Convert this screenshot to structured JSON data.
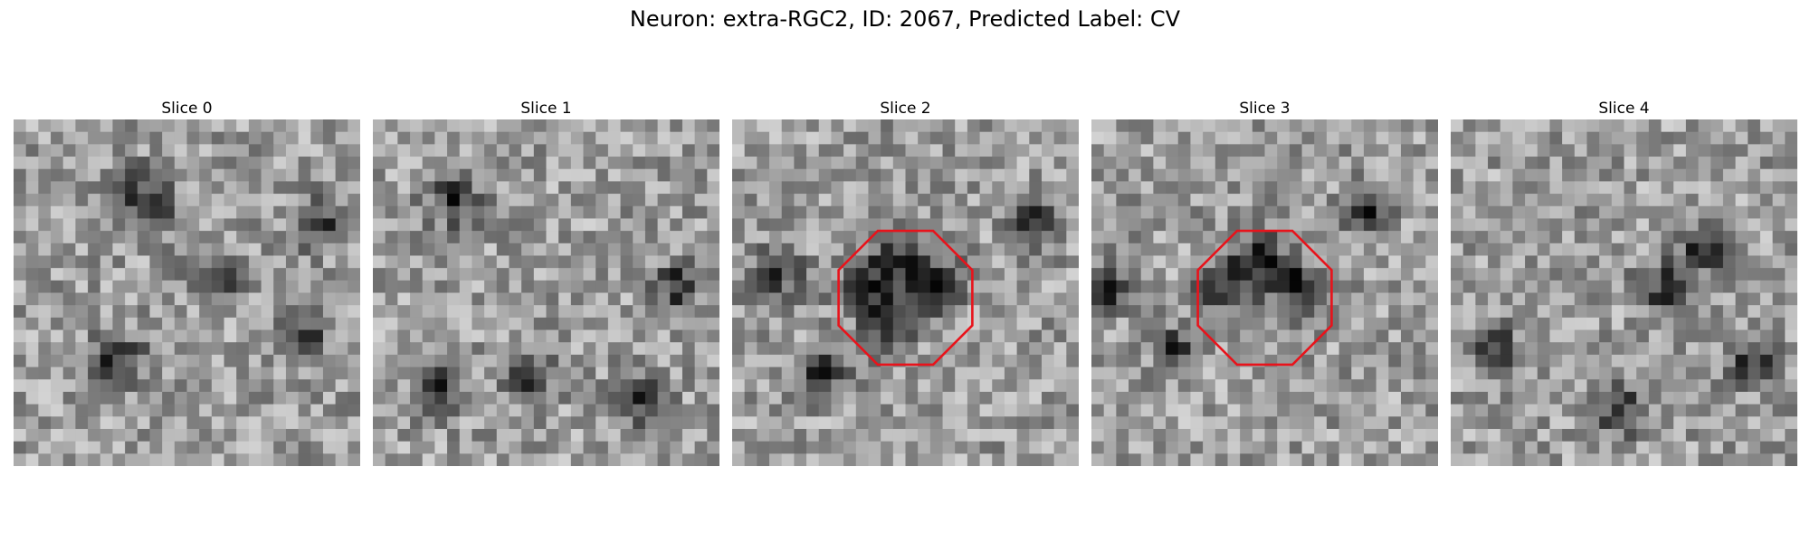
{
  "figure": {
    "title": "Neuron: extra-RGC2, ID: 2067, Predicted Label: CV",
    "outline_color": "#e8131b",
    "colormap": "grayscale"
  },
  "slices": [
    {
      "label": "Slice 0",
      "roi_outline": false,
      "grid_size": 28
    },
    {
      "label": "Slice 1",
      "roi_outline": false,
      "grid_size": 28
    },
    {
      "label": "Slice 2",
      "roi_outline": true,
      "grid_size": 28
    },
    {
      "label": "Slice 3",
      "roi_outline": true,
      "grid_size": 28
    },
    {
      "label": "Slice 4",
      "roi_outline": false,
      "grid_size": 28
    }
  ]
}
